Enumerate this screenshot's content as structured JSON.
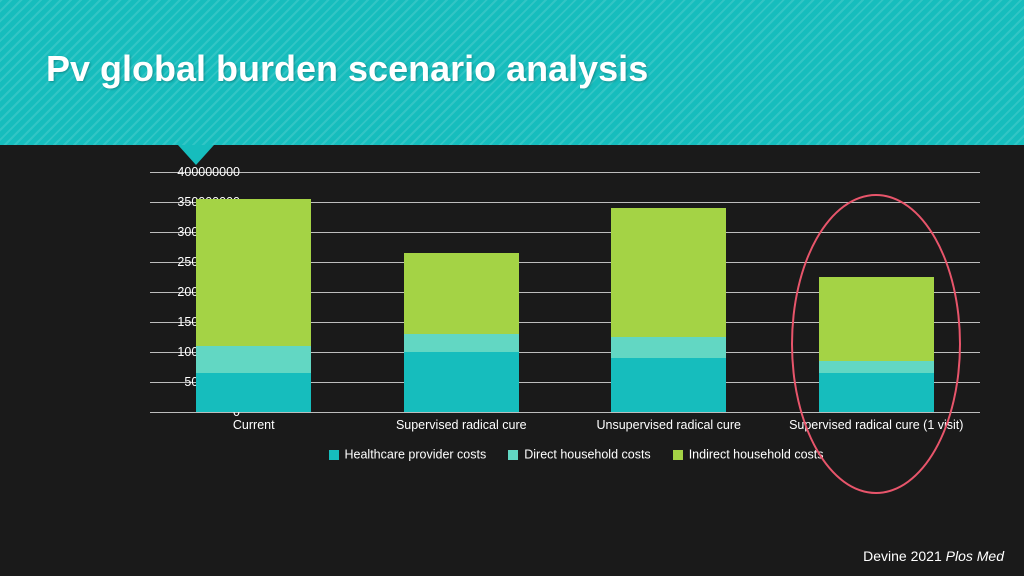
{
  "header": {
    "title": "Pv global burden scenario analysis",
    "background_color": "#16bdbd"
  },
  "slide": {
    "background_color": "#1a1a1a"
  },
  "chart": {
    "type": "stacked-bar",
    "ymax": 400000000,
    "ytick_step": 50000000,
    "yticks": [
      0,
      50000000,
      100000000,
      150000000,
      200000000,
      250000000,
      300000000,
      350000000,
      400000000
    ],
    "grid_color": "#cfcfcf",
    "text_color": "#ffffff",
    "label_fontsize": 12.5,
    "categories": [
      "Current",
      "Supervised radical cure",
      "Unsupervised radical cure",
      "Supervised radical cure (1 visit)"
    ],
    "series": [
      {
        "name": "Healthcare provider costs",
        "color": "#16bdbd"
      },
      {
        "name": "Direct household costs",
        "color": "#62d7c3"
      },
      {
        "name": "Indirect household costs",
        "color": "#a4d345"
      }
    ],
    "data": [
      [
        65000000,
        100000000,
        90000000,
        65000000
      ],
      [
        45000000,
        30000000,
        35000000,
        20000000
      ],
      [
        245000000,
        135000000,
        215000000,
        140000000
      ]
    ],
    "highlight": {
      "category_index": 3,
      "stroke": "#e8556b"
    }
  },
  "citation": {
    "author_year": "Devine 2021",
    "journal": "Plos Med"
  }
}
